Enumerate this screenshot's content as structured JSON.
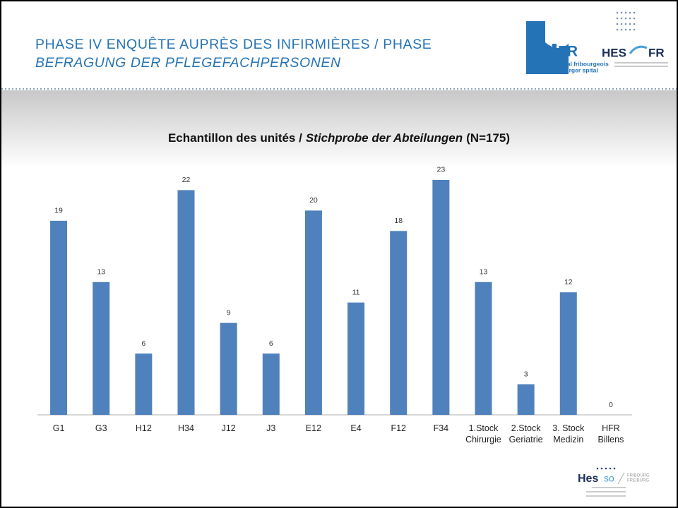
{
  "header": {
    "title_line1": "PHASE IV ENQUÊTE AUPRÈS DES INFIRMIÈRES / PHASE",
    "title_line2": "BEFRAGUNG DER PFLEGEFACHPERSONEN"
  },
  "logos": {
    "hfr": "FR",
    "hfr_line1": "hôpital fribourgeois",
    "hfr_line2": "freiburger spital",
    "hes_left": "HES",
    "hes_right": "FR",
    "hesso": "Hes",
    "hesso_so": "so",
    "hesso_city1": "FRIBOURG",
    "hesso_city2": "FREIBURG"
  },
  "chart_data": {
    "type": "bar",
    "title_parts": [
      "Echantillon des unités /",
      "Stichprobe der Abteilungen",
      "(N=175)"
    ],
    "categories": [
      "G1",
      "G3",
      "H12",
      "H34",
      "J12",
      "J3",
      "E12",
      "E4",
      "F12",
      "F34",
      "1.Stock\nChirurgie",
      "2.Stock\nGeriatrie",
      "3. Stock\nMedizin",
      "HFR\nBillens"
    ],
    "values": [
      19,
      13,
      6,
      22,
      9,
      6,
      20,
      11,
      18,
      23,
      13,
      3,
      12,
      0
    ],
    "color": "#4f81bd",
    "ylim": [
      0,
      25
    ],
    "grid": false
  }
}
